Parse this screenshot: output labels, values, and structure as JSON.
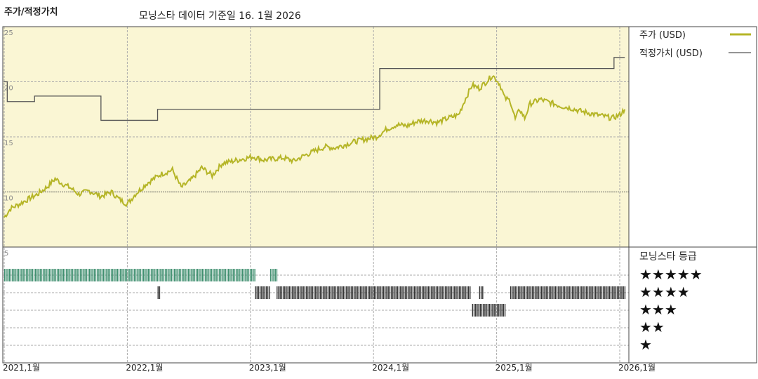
{
  "chart_title": "주가/적정가치",
  "subtitle": "모닝스타 데이터 기준일 16. 1월 2026",
  "rating_panel_title": "모닝스타 등급",
  "colors": {
    "plot_bg": "#faf6d4",
    "price": "#b5b527",
    "fair_value": "#555555",
    "rating_5": "#3f8f6f",
    "rating_other": "#333333",
    "grid": "#aaaaaa"
  },
  "chart_data": {
    "type": "line",
    "xlabel": "",
    "ylabel": "",
    "x_ticks": [
      "2021,1월",
      "2022,1월",
      "2023,1월",
      "2024,1월",
      "2025,1월",
      "2026,1월"
    ],
    "ylim": [
      5,
      25
    ],
    "y_ticks": [
      "25",
      "20",
      "15",
      "10",
      "5"
    ],
    "grid": true,
    "legend_position": "top-right",
    "series": [
      {
        "name": "주가 (USD)",
        "type": "line",
        "points": [
          [
            "2021-01-01",
            7.7
          ],
          [
            "2021-01-20",
            8.5
          ],
          [
            "2021-02-15",
            8.9
          ],
          [
            "2021-03-10",
            9.3
          ],
          [
            "2021-04-10",
            9.8
          ],
          [
            "2021-05-10",
            10.5
          ],
          [
            "2021-06-01",
            11.2
          ],
          [
            "2021-06-20",
            10.8
          ],
          [
            "2021-07-15",
            10.4
          ],
          [
            "2021-08-10",
            9.8
          ],
          [
            "2021-09-10",
            10.1
          ],
          [
            "2021-10-15",
            9.6
          ],
          [
            "2021-11-15",
            10.0
          ],
          [
            "2021-12-10",
            9.3
          ],
          [
            "2022-01-01",
            8.9
          ],
          [
            "2022-01-25",
            9.8
          ],
          [
            "2022-03-01",
            10.8
          ],
          [
            "2022-04-10",
            11.6
          ],
          [
            "2022-05-15",
            12.0
          ],
          [
            "2022-06-10",
            10.4
          ],
          [
            "2022-07-10",
            11.1
          ],
          [
            "2022-08-10",
            12.2
          ],
          [
            "2022-09-10",
            11.5
          ],
          [
            "2022-10-10",
            12.6
          ],
          [
            "2022-11-10",
            12.8
          ],
          [
            "2022-12-10",
            13.0
          ],
          [
            "2023-01-10",
            13.2
          ],
          [
            "2023-02-10",
            12.9
          ],
          [
            "2023-03-10",
            13.0
          ],
          [
            "2023-04-10",
            13.1
          ],
          [
            "2023-05-10",
            12.8
          ],
          [
            "2023-06-10",
            13.3
          ],
          [
            "2023-07-10",
            13.7
          ],
          [
            "2023-08-10",
            14.1
          ],
          [
            "2023-09-10",
            14.0
          ],
          [
            "2023-10-10",
            14.3
          ],
          [
            "2023-11-10",
            14.6
          ],
          [
            "2023-12-10",
            14.8
          ],
          [
            "2024-01-10",
            15.0
          ],
          [
            "2024-02-10",
            15.7
          ],
          [
            "2024-03-10",
            16.1
          ],
          [
            "2024-04-10",
            16.0
          ],
          [
            "2024-05-10",
            16.4
          ],
          [
            "2024-06-10",
            16.5
          ],
          [
            "2024-07-10",
            16.3
          ],
          [
            "2024-08-10",
            16.7
          ],
          [
            "2024-09-10",
            17.0
          ],
          [
            "2024-10-01",
            18.5
          ],
          [
            "2024-10-20",
            19.7
          ],
          [
            "2024-11-10",
            19.4
          ],
          [
            "2024-12-01",
            20.0
          ],
          [
            "2024-12-20",
            20.6
          ],
          [
            "2025-01-10",
            19.8
          ],
          [
            "2025-01-25",
            18.5
          ],
          [
            "2025-02-10",
            18.3
          ],
          [
            "2025-02-25",
            16.6
          ],
          [
            "2025-03-10",
            17.5
          ],
          [
            "2025-03-25",
            16.7
          ],
          [
            "2025-04-10",
            18.0
          ],
          [
            "2025-05-10",
            18.4
          ],
          [
            "2025-06-10",
            18.1
          ],
          [
            "2025-07-10",
            17.8
          ],
          [
            "2025-08-10",
            17.6
          ],
          [
            "2025-09-10",
            17.3
          ],
          [
            "2025-10-10",
            17.1
          ],
          [
            "2025-11-10",
            16.9
          ],
          [
            "2025-12-10",
            16.7
          ],
          [
            "2026-01-01",
            17.0
          ],
          [
            "2026-01-16",
            17.5
          ]
        ]
      },
      {
        "name": "적정가치 (USD)",
        "type": "step",
        "points": [
          [
            "2021-01-01",
            20.0
          ],
          [
            "2021-01-10",
            18.2
          ],
          [
            "2021-04-01",
            18.7
          ],
          [
            "2021-10-15",
            16.5
          ],
          [
            "2022-04-01",
            17.5
          ],
          [
            "2024-01-20",
            21.2
          ],
          [
            "2025-12-15",
            22.2
          ],
          [
            "2026-01-16",
            22.2
          ]
        ]
      }
    ],
    "rating_labels": [
      "★★★★★",
      "★★★★",
      "★★★",
      "★★",
      "★"
    ],
    "ratings": [
      {
        "stars": 5,
        "start": "2021-01-01",
        "end": "2023-01-15"
      },
      {
        "stars": 4,
        "start": "2022-04-01",
        "end": "2022-04-10"
      },
      {
        "stars": 5,
        "start": "2023-03-01",
        "end": "2023-03-20"
      },
      {
        "stars": 4,
        "start": "2023-01-15",
        "end": "2023-03-01"
      },
      {
        "stars": 4,
        "start": "2023-03-20",
        "end": "2024-10-15"
      },
      {
        "stars": 4,
        "start": "2024-11-10",
        "end": "2024-11-20"
      },
      {
        "stars": 3,
        "start": "2024-10-20",
        "end": "2025-01-25"
      },
      {
        "stars": 4,
        "start": "2025-02-10",
        "end": "2026-01-16"
      }
    ]
  }
}
